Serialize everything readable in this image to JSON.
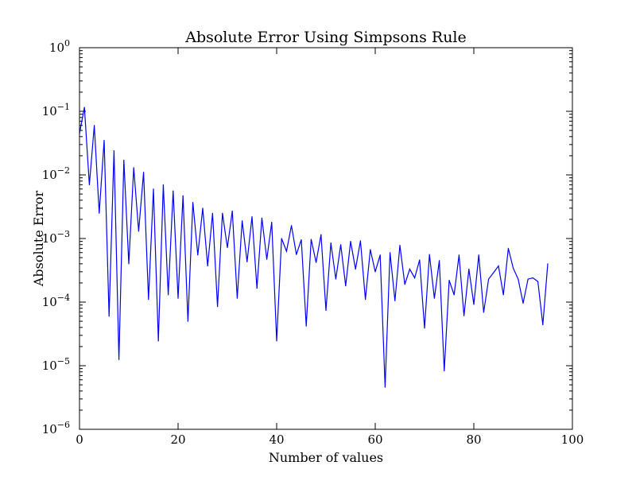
{
  "chart_data": {
    "type": "line",
    "title": "Absolute Error Using Simpsons Rule",
    "xlabel": "Number of values",
    "ylabel": "Absolute Error",
    "xlim": [
      0,
      100
    ],
    "ylim": [
      1e-06,
      1
    ],
    "yscale": "log",
    "grid": false,
    "legend": "none",
    "x_ticks": [
      0,
      20,
      40,
      60,
      80,
      100
    ],
    "y_ticks": [
      {
        "value": 1,
        "base": "10",
        "exp": "0"
      },
      {
        "value": 0.1,
        "base": "10",
        "exp": "−1"
      },
      {
        "value": 0.01,
        "base": "10",
        "exp": "−2"
      },
      {
        "value": 0.001,
        "base": "10",
        "exp": "−3"
      },
      {
        "value": 0.0001,
        "base": "10",
        "exp": "−4"
      },
      {
        "value": 1e-05,
        "base": "10",
        "exp": "−5"
      },
      {
        "value": 1e-06,
        "base": "10",
        "exp": "−6"
      }
    ],
    "series": [
      {
        "color": "#0000ff",
        "x": [
          0,
          1,
          2,
          3,
          4,
          5,
          6,
          7,
          8,
          9,
          10,
          11,
          12,
          13,
          14,
          15,
          16,
          17,
          18,
          19,
          20,
          21,
          22,
          23,
          24,
          25,
          26,
          27,
          28,
          29,
          30,
          31,
          32,
          33,
          34,
          35,
          36,
          37,
          38,
          39,
          40,
          41,
          42,
          43,
          44,
          45,
          46,
          47,
          48,
          49,
          50,
          51,
          52,
          53,
          54,
          55,
          56,
          57,
          58,
          59,
          60,
          61,
          62,
          63,
          64,
          65,
          66,
          67,
          68,
          69,
          70,
          71,
          72,
          73,
          74,
          75,
          76,
          77,
          78,
          79,
          80,
          81,
          82,
          83,
          84,
          85,
          86,
          87,
          88,
          89,
          90,
          91,
          92,
          93,
          94,
          95
        ],
        "y": [
          0.045,
          0.115,
          0.007,
          0.06,
          0.0025,
          0.035,
          6e-05,
          0.024,
          1.25e-05,
          0.017,
          0.0004,
          0.013,
          0.0013,
          0.011,
          0.00011,
          0.006,
          2.45e-05,
          0.007,
          0.00013,
          0.0056,
          0.000115,
          0.0047,
          5e-05,
          0.0037,
          0.00055,
          0.003,
          0.00037,
          0.0025,
          8.5e-05,
          0.0025,
          0.00072,
          0.0027,
          0.000115,
          0.0019,
          0.00043,
          0.0022,
          0.000165,
          0.0021,
          0.00047,
          0.0018,
          2.45e-05,
          0.001,
          0.00063,
          0.0016,
          0.00056,
          0.00096,
          4.2e-05,
          0.00097,
          0.00042,
          0.00115,
          7.4e-05,
          0.00085,
          0.00023,
          0.0008,
          0.00018,
          0.0009,
          0.00033,
          0.00092,
          0.00011,
          0.00067,
          0.0003,
          0.00055,
          4.6e-06,
          0.0006,
          0.000105,
          0.00078,
          0.00019,
          0.00033,
          0.00024,
          0.00046,
          3.9e-05,
          0.00056,
          0.000115,
          0.00045,
          8.3e-06,
          0.00022,
          0.00013,
          0.00055,
          6.1e-05,
          0.00033,
          9.2e-05,
          0.00055,
          6.9e-05,
          0.00023,
          0.00029,
          0.00037,
          0.00013,
          0.0007,
          0.00034,
          0.00023,
          9.6e-05,
          0.00023,
          0.00024,
          0.00021,
          4.4e-05,
          0.0004
        ]
      }
    ]
  }
}
